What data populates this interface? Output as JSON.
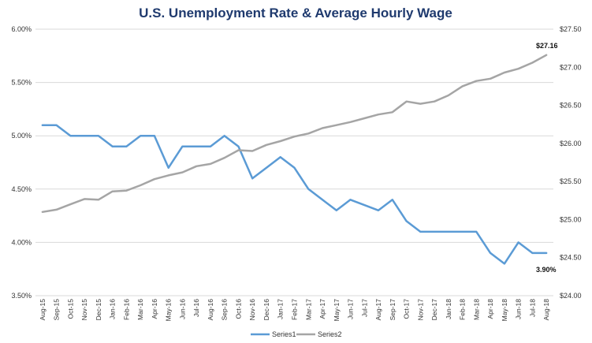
{
  "chart_data": {
    "type": "line",
    "title": "U.S. Unemployment Rate & Average Hourly Wage",
    "categories": [
      "Aug-15",
      "Sep-15",
      "Oct-15",
      "Nov-15",
      "Dec-15",
      "Jan-16",
      "Feb-16",
      "Mar-16",
      "Apr-16",
      "May-16",
      "Jun-16",
      "Jul-16",
      "Aug-16",
      "Sep-16",
      "Oct-16",
      "Nov-16",
      "Dec-16",
      "Jan-17",
      "Feb-17",
      "Mar-17",
      "Apr-17",
      "May-17",
      "Jun-17",
      "Jul-17",
      "Aug-17",
      "Sep-17",
      "Oct-17",
      "Nov-17",
      "Dec-17",
      "Jan-18",
      "Feb-18",
      "Mar-18",
      "Apr-18",
      "May-18",
      "Jun-18",
      "Jul-18",
      "Aug-18"
    ],
    "left_axis": {
      "ticks": [
        "3.50%",
        "4.00%",
        "4.50%",
        "5.00%",
        "5.50%",
        "6.00%"
      ],
      "ylim": [
        0.035,
        0.06
      ]
    },
    "right_axis": {
      "ticks": [
        "$24.00",
        "$24.50",
        "$25.00",
        "$25.50",
        "$26.00",
        "$26.50",
        "$27.00",
        "$27.50"
      ],
      "ylim": [
        24.0,
        27.5
      ]
    },
    "series": [
      {
        "name": "Series1",
        "axis": "left",
        "color": "#5b9bd5",
        "values": [
          0.051,
          0.051,
          0.05,
          0.05,
          0.05,
          0.049,
          0.049,
          0.05,
          0.05,
          0.047,
          0.049,
          0.049,
          0.049,
          0.05,
          0.049,
          0.046,
          0.047,
          0.048,
          0.047,
          0.045,
          0.044,
          0.043,
          0.044,
          0.0435,
          0.043,
          0.044,
          0.042,
          0.041,
          0.041,
          0.041,
          0.041,
          0.041,
          0.039,
          0.038,
          0.04,
          0.039,
          0.039
        ]
      },
      {
        "name": "Series2",
        "axis": "right",
        "color": "#a5a5a5",
        "values": [
          25.1,
          25.13,
          25.2,
          25.27,
          25.26,
          25.37,
          25.38,
          25.45,
          25.53,
          25.58,
          25.62,
          25.7,
          25.73,
          25.81,
          25.91,
          25.9,
          25.98,
          26.03,
          26.09,
          26.13,
          26.2,
          26.24,
          26.28,
          26.33,
          26.38,
          26.41,
          26.55,
          26.52,
          26.55,
          26.63,
          26.75,
          26.82,
          26.85,
          26.93,
          26.98,
          27.06,
          27.16
        ]
      }
    ],
    "annotations": {
      "series2_last": "$27.16",
      "series1_last": "3.90%"
    },
    "legend": {
      "position": "bottom"
    },
    "grid": true
  }
}
